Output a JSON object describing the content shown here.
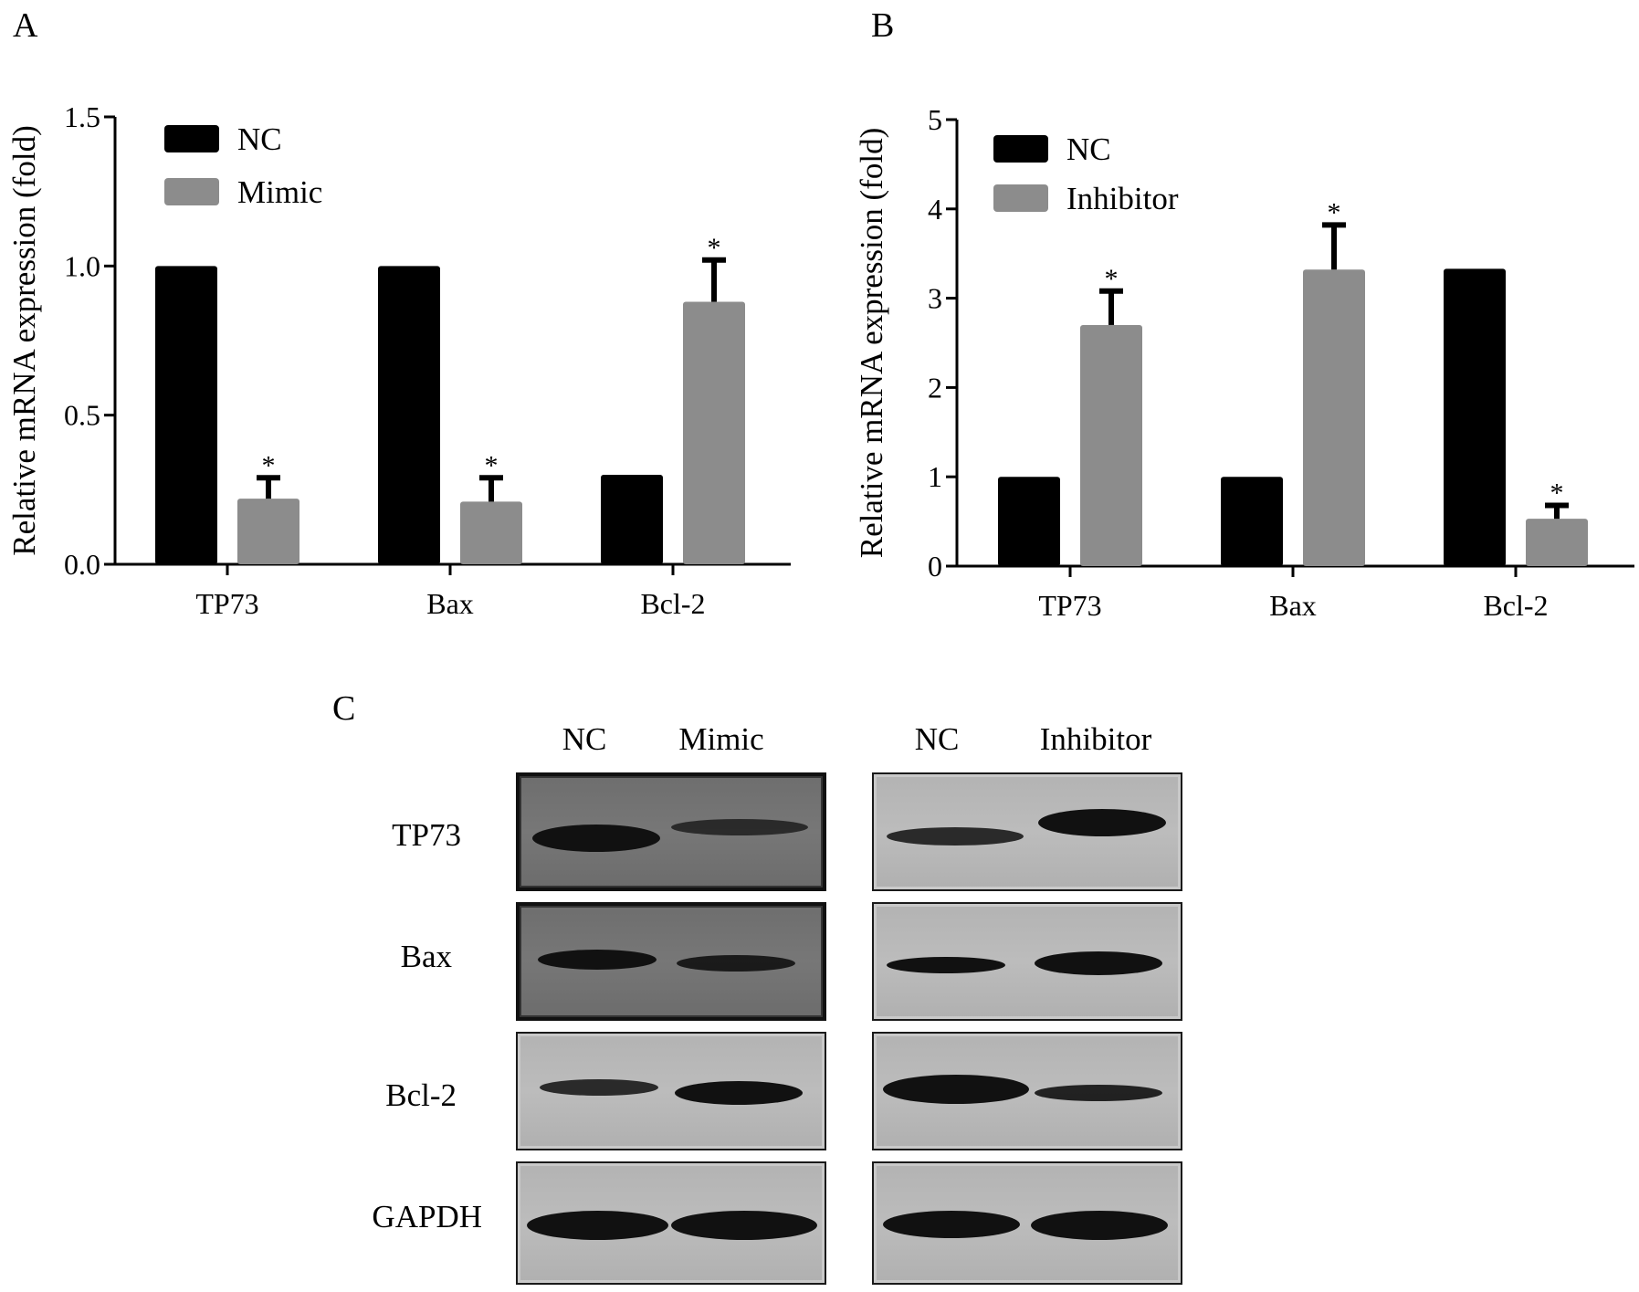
{
  "panels": {
    "a_letter": "A",
    "b_letter": "B",
    "c_letter": "C"
  },
  "colors": {
    "nc": "#000000",
    "treat": "#8c8c8c"
  },
  "chart_data": [
    {
      "panel": "A",
      "type": "bar",
      "categories": [
        "TP73",
        "Bax",
        "Bcl-2"
      ],
      "ylabel": "Relative mRNA expression (fold)",
      "ylim": [
        0,
        1.5
      ],
      "yticks": [
        0.0,
        0.5,
        1.0,
        1.5
      ],
      "ytick_labels": [
        "0.0",
        "0.5",
        "1.0",
        "1.5"
      ],
      "legend": "top-left",
      "series": [
        {
          "name": "NC",
          "color": "#000000",
          "values": [
            1.0,
            1.0,
            0.3
          ],
          "errors": [
            0,
            0,
            0
          ],
          "sig": [
            "",
            "",
            ""
          ]
        },
        {
          "name": "Mimic",
          "color": "#8c8c8c",
          "values": [
            0.22,
            0.21,
            0.88
          ],
          "errors": [
            0.07,
            0.08,
            0.14
          ],
          "sig": [
            "*",
            "*",
            "*"
          ]
        }
      ]
    },
    {
      "panel": "B",
      "type": "bar",
      "categories": [
        "TP73",
        "Bax",
        "Bcl-2"
      ],
      "ylabel": "Relative mRNA expression (fold)",
      "ylim": [
        0,
        5
      ],
      "yticks": [
        0,
        1,
        2,
        3,
        4,
        5
      ],
      "ytick_labels": [
        "0",
        "1",
        "2",
        "3",
        "4",
        "5"
      ],
      "legend": "top-left",
      "series": [
        {
          "name": "NC",
          "color": "#000000",
          "values": [
            1.0,
            1.0,
            3.33
          ],
          "errors": [
            0,
            0,
            0
          ],
          "sig": [
            "",
            "",
            ""
          ]
        },
        {
          "name": "Inhibitor",
          "color": "#8c8c8c",
          "values": [
            2.7,
            3.32,
            0.53
          ],
          "errors": [
            0.38,
            0.5,
            0.15
          ],
          "sig": [
            "*",
            "*",
            "*"
          ]
        }
      ]
    }
  ],
  "western": {
    "left_lanes": [
      "NC",
      "Mimic"
    ],
    "right_lanes": [
      "NC",
      "Inhibitor"
    ],
    "rows": [
      "TP73",
      "Bax",
      "Bcl-2",
      "GAPDH"
    ]
  }
}
